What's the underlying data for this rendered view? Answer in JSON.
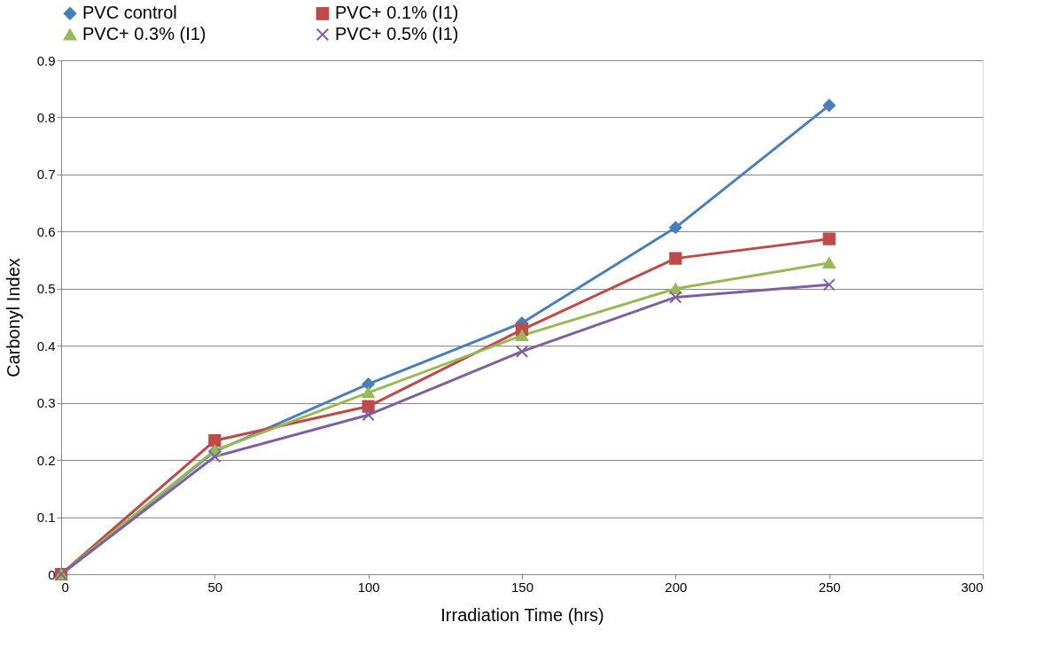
{
  "chart_data": {
    "type": "line",
    "xlabel": "Irradiation Time (hrs)",
    "ylabel": "Carbonyl Index",
    "x": [
      0,
      50,
      100,
      150,
      200,
      250
    ],
    "series": [
      {
        "name": "PVC control",
        "color": "#4a7ebb",
        "marker": "diamond",
        "values": [
          0,
          0.215,
          0.333,
          0.44,
          0.607,
          0.821
        ]
      },
      {
        "name": "PVC+ 0.1% (I1)",
        "color": "#be4b48",
        "marker": "square",
        "values": [
          0,
          0.234,
          0.294,
          0.428,
          0.553,
          0.587
        ]
      },
      {
        "name": "PVC+ 0.3% (I1)",
        "color": "#98b954",
        "marker": "triangle",
        "values": [
          0,
          0.217,
          0.318,
          0.418,
          0.5,
          0.545
        ]
      },
      {
        "name": "PVC+ 0.5% (I1)",
        "color": "#7d60a0",
        "marker": "cross",
        "values": [
          0,
          0.206,
          0.279,
          0.39,
          0.485,
          0.507
        ]
      }
    ],
    "xlim": [
      0,
      300
    ],
    "xticks": [
      0,
      50,
      100,
      150,
      200,
      250,
      300
    ],
    "ylim": [
      0,
      0.9
    ],
    "yticks": [
      0,
      0.1,
      0.2,
      0.3,
      0.4,
      0.5,
      0.6,
      0.7,
      0.8,
      0.9
    ],
    "grid": "y",
    "legend": "top",
    "line_style": "solid"
  }
}
